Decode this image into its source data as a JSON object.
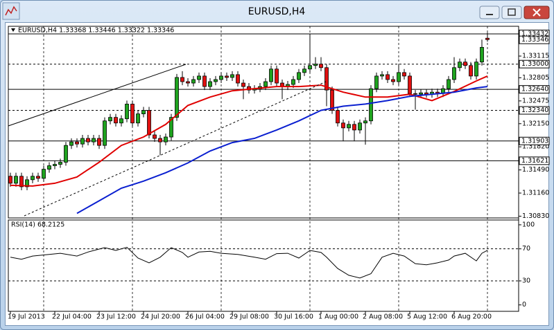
{
  "window": {
    "title": "EURUSD,H4"
  },
  "chart_data": [
    {
      "type": "candlestick",
      "title": "EURUSD,H4  1.33368 1.33446 1.33322 1.33346",
      "categories": [
        "19 Jul 2013",
        null,
        null,
        null,
        null,
        null,
        null,
        null,
        "22 Jul 04:00",
        null,
        null,
        null,
        null,
        null,
        null,
        null,
        "23 Jul 12:00",
        null,
        null,
        null,
        null,
        null,
        null,
        null,
        "24 Jul 20:00",
        null,
        null,
        null,
        null,
        null,
        null,
        null,
        "26 Jul 04:00",
        null,
        null,
        null,
        null,
        null,
        null,
        null,
        "29 Jul 08:00",
        null,
        null,
        null,
        null,
        null,
        null,
        null,
        "30 Jul 16:00",
        null,
        null,
        null,
        null,
        null,
        null,
        null,
        "1 Aug 00:00",
        null,
        null,
        null,
        null,
        null,
        null,
        null,
        "2 Aug 08:00",
        null,
        null,
        null,
        null,
        null,
        null,
        null,
        "5 Aug 12:00",
        null,
        null,
        null,
        null,
        null,
        null,
        null,
        "6 Aug 20:00",
        null,
        null,
        null,
        null,
        null,
        null
      ],
      "open": [
        1.314,
        1.313,
        1.314,
        1.3125,
        1.3135,
        1.314,
        1.3137,
        1.315,
        1.3155,
        1.3157,
        1.316,
        1.3184,
        1.3189,
        1.3186,
        1.3194,
        1.3189,
        1.3194,
        1.3184,
        1.3219,
        1.3224,
        1.3216,
        1.3222,
        1.3243,
        1.3216,
        1.3229,
        1.3234,
        1.3199,
        1.3194,
        1.3189,
        1.3196,
        1.3224,
        1.3281,
        1.3275,
        1.3273,
        1.3278,
        1.3283,
        1.3268,
        1.3275,
        1.3278,
        1.3283,
        1.3281,
        1.3285,
        1.3273,
        1.3268,
        1.3263,
        1.3265,
        1.3268,
        1.3275,
        1.3293,
        1.3273,
        1.3268,
        1.3271,
        1.3278,
        1.3288,
        1.3293,
        1.3298,
        1.33,
        1.3295,
        1.3263,
        1.3234,
        1.3216,
        1.3209,
        1.3214,
        1.3206,
        1.3216,
        1.3219,
        1.3265,
        1.3283,
        1.3285,
        1.3278,
        1.3275,
        1.3288,
        1.3283,
        1.3258,
        1.3257,
        1.3259,
        1.3257,
        1.326,
        1.3258,
        1.3265,
        1.3278,
        1.3295,
        1.3303,
        1.3298,
        1.3283,
        1.3303,
        1.3337
      ],
      "high": [
        1.3145,
        1.3145,
        1.3145,
        1.314,
        1.3145,
        1.3145,
        1.3155,
        1.316,
        1.3162,
        1.3165,
        1.3189,
        1.3194,
        1.3194,
        1.3199,
        1.3199,
        1.3199,
        1.3199,
        1.3224,
        1.3229,
        1.3229,
        1.3227,
        1.3248,
        1.3248,
        1.3234,
        1.3239,
        1.3239,
        1.3204,
        1.3199,
        1.3201,
        1.3229,
        1.3286,
        1.329,
        1.328,
        1.3283,
        1.3288,
        1.3288,
        1.328,
        1.3283,
        1.3288,
        1.3288,
        1.329,
        1.329,
        1.3278,
        1.3273,
        1.327,
        1.3273,
        1.328,
        1.3298,
        1.3298,
        1.3278,
        1.3276,
        1.3283,
        1.3293,
        1.3298,
        1.3343,
        1.331,
        1.331,
        1.33,
        1.3268,
        1.3239,
        1.3221,
        1.3219,
        1.3219,
        1.3221,
        1.3224,
        1.327,
        1.3288,
        1.329,
        1.329,
        1.3283,
        1.33,
        1.3293,
        1.3288,
        1.3263,
        1.3264,
        1.3264,
        1.3265,
        1.3265,
        1.327,
        1.3283,
        1.331,
        1.3308,
        1.3308,
        1.3303,
        1.3308,
        1.3335,
        1.3345
      ],
      "low": [
        1.3125,
        1.3125,
        1.312,
        1.312,
        1.313,
        1.3132,
        1.3132,
        1.3145,
        1.315,
        1.3152,
        1.3155,
        1.3179,
        1.3181,
        1.3181,
        1.3184,
        1.3184,
        1.3179,
        1.3179,
        1.3214,
        1.3211,
        1.3211,
        1.3217,
        1.3211,
        1.3211,
        1.3224,
        1.3194,
        1.3189,
        1.317,
        1.3184,
        1.3191,
        1.3219,
        1.327,
        1.3268,
        1.3268,
        1.3273,
        1.3263,
        1.3263,
        1.327,
        1.3273,
        1.3276,
        1.3276,
        1.3268,
        1.325,
        1.3258,
        1.3258,
        1.326,
        1.3263,
        1.327,
        1.3268,
        1.325,
        1.3263,
        1.3266,
        1.3273,
        1.3283,
        1.3288,
        1.3293,
        1.329,
        1.324,
        1.3229,
        1.3211,
        1.319,
        1.3204,
        1.319,
        1.3201,
        1.3185,
        1.3214,
        1.326,
        1.3278,
        1.3273,
        1.327,
        1.327,
        1.3278,
        1.3253,
        1.3235,
        1.3252,
        1.3252,
        1.3252,
        1.3253,
        1.3253,
        1.326,
        1.3273,
        1.329,
        1.3293,
        1.3278,
        1.3278,
        1.3298,
        1.3332
      ],
      "close": [
        1.313,
        1.314,
        1.3125,
        1.3135,
        1.314,
        1.3137,
        1.315,
        1.3155,
        1.3157,
        1.316,
        1.3184,
        1.3189,
        1.3186,
        1.3194,
        1.3189,
        1.3194,
        1.3184,
        1.3219,
        1.3224,
        1.3216,
        1.3222,
        1.3243,
        1.3216,
        1.3229,
        1.3234,
        1.3199,
        1.3194,
        1.3189,
        1.3196,
        1.3224,
        1.3281,
        1.3275,
        1.3273,
        1.3278,
        1.3283,
        1.3268,
        1.3275,
        1.3278,
        1.3283,
        1.3281,
        1.3285,
        1.3273,
        1.3268,
        1.3263,
        1.3265,
        1.3268,
        1.3275,
        1.3293,
        1.3273,
        1.3268,
        1.3271,
        1.3278,
        1.3288,
        1.3293,
        1.3298,
        1.33,
        1.3295,
        1.3263,
        1.3234,
        1.3216,
        1.3209,
        1.3214,
        1.3206,
        1.3216,
        1.3219,
        1.3265,
        1.3283,
        1.3285,
        1.3278,
        1.3275,
        1.3288,
        1.3283,
        1.3258,
        1.3257,
        1.3259,
        1.3257,
        1.326,
        1.3258,
        1.3265,
        1.3278,
        1.3295,
        1.3303,
        1.3298,
        1.3283,
        1.3303,
        1.3324,
        1.3335
      ],
      "up_color": "#1fa31f",
      "down_color": "#e01010",
      "overlays": [
        {
          "color": "#e00000",
          "x": [
            0,
            4,
            8,
            12,
            16,
            20,
            24,
            28,
            32,
            36,
            40,
            44,
            48,
            52,
            56,
            60,
            64,
            68,
            72,
            76,
            80,
            84,
            86
          ],
          "values": [
            1.3127,
            1.3126,
            1.313,
            1.3139,
            1.316,
            1.3184,
            1.3196,
            1.3214,
            1.3241,
            1.3253,
            1.3262,
            1.3265,
            1.3268,
            1.3268,
            1.327,
            1.326,
            1.3253,
            1.3253,
            1.3257,
            1.3248,
            1.3261,
            1.3276,
            1.3283
          ]
        },
        {
          "color": "#0a1fd0",
          "x": [
            12,
            16,
            20,
            24,
            28,
            32,
            36,
            40,
            44,
            48,
            52,
            56,
            60,
            64,
            68,
            72,
            76,
            80,
            84,
            86
          ],
          "values": [
            1.3087,
            1.3105,
            1.3123,
            1.3133,
            1.3145,
            1.3159,
            1.3176,
            1.3188,
            1.3194,
            1.3206,
            1.3219,
            1.3234,
            1.324,
            1.3243,
            1.3248,
            1.3254,
            1.3257,
            1.326,
            1.3266,
            1.3268
          ]
        }
      ],
      "xlim": [
        -0.375,
        91.625
      ],
      "ylim": [
        1.30805,
        1.3354
      ],
      "yticks": [
        1.33115,
        1.32805,
        1.32475,
        {
          "value": 1.3215,
          "label": "1.32150"
        },
        {
          "value": 1.3182,
          "label": "1.31820"
        },
        {
          "value": 1.3149,
          "label": "1.31490"
        },
        {
          "value": 1.3116,
          "label": "1.31160"
        },
        {
          "value": 1.3083,
          "label": "1.30830"
        }
      ],
      "levels": [
        {
          "value": 1.33432,
          "style": "solid"
        },
        {
          "value": 1.33346,
          "style": "price"
        },
        {
          "value": 1.33,
          "label": "1.33000",
          "style": "dashed"
        },
        {
          "value": 1.3264,
          "label": "1.32640",
          "style": "solid"
        },
        {
          "value": 1.3234,
          "label": "1.32340",
          "style": "dashed"
        },
        {
          "value": 1.31903,
          "style": "solid"
        },
        {
          "value": 1.31621,
          "style": "solid"
        }
      ]
    },
    {
      "type": "line",
      "title": "RSI(14) 68.2125",
      "color": "#000000",
      "x": [
        0,
        2,
        4,
        7,
        9,
        12,
        14,
        17,
        19,
        21,
        23,
        25,
        27,
        29,
        31,
        32,
        34,
        36,
        38,
        41,
        44,
        46,
        48,
        50,
        52,
        54,
        56,
        57,
        59,
        61,
        63,
        65,
        67,
        69,
        71,
        73,
        75,
        77,
        79,
        80,
        82,
        84,
        85,
        86
      ],
      "values": [
        59.5,
        57,
        61,
        63,
        64.5,
        61,
        66,
        71.5,
        68,
        72,
        58.5,
        52.5,
        59.5,
        71.5,
        65.5,
        59.5,
        66,
        67,
        64.5,
        63,
        59.5,
        57,
        64,
        64.5,
        58.5,
        68,
        65.5,
        59.5,
        45.5,
        37,
        33.5,
        39,
        59.5,
        64.5,
        61,
        51.5,
        50,
        52.5,
        56,
        61,
        64.5,
        55,
        64.5,
        68.2125
      ],
      "xlim": [
        -0.375,
        91.625
      ],
      "ylim": [
        -8,
        106
      ],
      "yticks": [
        0,
        30,
        70,
        100
      ],
      "levels": [
        30,
        70
      ]
    }
  ]
}
